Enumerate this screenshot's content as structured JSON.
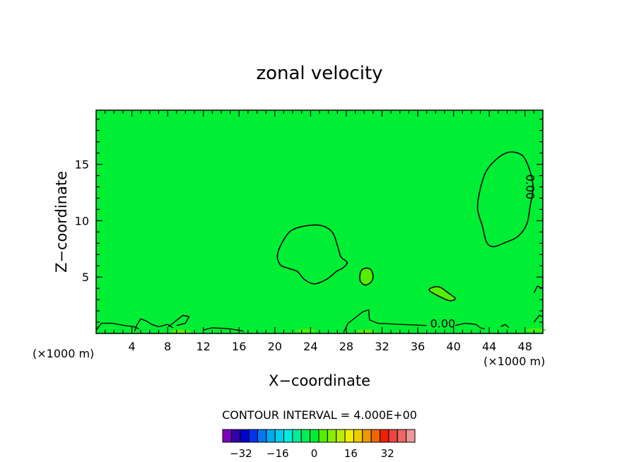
{
  "chart_data": {
    "type": "contour",
    "title": "zonal velocity",
    "xlabel": "X−coordinate",
    "ylabel": "Z−coordinate",
    "x_unit": "(×1000 m)",
    "x_unit_right": "(×1000 m)",
    "xlim": [
      0,
      50
    ],
    "ylim": [
      0,
      19.8
    ],
    "xticks": [
      4,
      8,
      12,
      16,
      20,
      24,
      28,
      32,
      36,
      40,
      44,
      48
    ],
    "xtick_labels": [
      "4",
      "8",
      "12",
      "16",
      "20",
      "24",
      "28",
      "32",
      "36",
      "40",
      "44",
      "48"
    ],
    "yticks": [
      5,
      10,
      15
    ],
    "ytick_labels": [
      "5",
      "10",
      "15"
    ],
    "contour_interval_text": "CONTOUR INTERVAL = 4.000E+00",
    "contour_labels": [
      {
        "text": "0.00",
        "x": 38.8,
        "z": 0.8,
        "rotation": 0
      },
      {
        "text": "0.00",
        "x": 48.5,
        "z": 13.0,
        "rotation": 90
      }
    ],
    "regions": [
      {
        "level": "0 to 4",
        "color": "#00ee33",
        "outline": [
          [
            20.3,
            7.0
          ],
          [
            21,
            8.3
          ],
          [
            22,
            9.2
          ],
          [
            24,
            9.6
          ],
          [
            25.5,
            9.5
          ],
          [
            26.5,
            8.9
          ],
          [
            27,
            7.8
          ],
          [
            27.4,
            6.8
          ],
          [
            28.1,
            6.3
          ],
          [
            27.6,
            5.8
          ],
          [
            26.9,
            5.5
          ],
          [
            25.8,
            4.8
          ],
          [
            24.4,
            4.4
          ],
          [
            23.3,
            4.8
          ],
          [
            22.5,
            5.5
          ],
          [
            21.4,
            5.8
          ],
          [
            20.6,
            6.1
          ]
        ]
      },
      {
        "level": "0 to 4",
        "color": "#00ee33",
        "outline": [
          [
            42.7,
            11.0
          ],
          [
            42.9,
            12.5
          ],
          [
            43.6,
            14.3
          ],
          [
            44.6,
            15.3
          ],
          [
            45.6,
            15.9
          ],
          [
            46.6,
            16.1
          ],
          [
            47.8,
            15.7
          ],
          [
            48.6,
            14.3
          ],
          [
            48.9,
            12.9
          ],
          [
            48.6,
            11.4
          ],
          [
            48.2,
            9.7
          ],
          [
            47.2,
            8.6
          ],
          [
            45.9,
            8.1
          ],
          [
            44.5,
            7.7
          ],
          [
            43.7,
            8.1
          ],
          [
            43.2,
            9.6
          ]
        ]
      },
      {
        "level": "-4 to 0",
        "color": "#55ee00",
        "outline": [
          [
            29.5,
            5.0
          ],
          [
            29.7,
            5.6
          ],
          [
            30.3,
            5.8
          ],
          [
            30.8,
            5.6
          ],
          [
            31,
            5.0
          ],
          [
            30.7,
            4.5
          ],
          [
            30.1,
            4.3
          ],
          [
            29.6,
            4.6
          ]
        ]
      },
      {
        "level": "-4 to 0",
        "color": "#55ee00",
        "outline": [
          [
            37.3,
            3.8
          ],
          [
            37.7,
            4.1
          ],
          [
            38.5,
            4.1
          ],
          [
            39.4,
            3.6
          ],
          [
            40.2,
            3.1
          ],
          [
            39.6,
            2.9
          ],
          [
            38.6,
            3.2
          ]
        ]
      }
    ],
    "colorbar": {
      "colors": [
        "#7f00bf",
        "#3300aa",
        "#0000cc",
        "#0033ee",
        "#0077ee",
        "#00aaee",
        "#00ccee",
        "#00eedd",
        "#00ee99",
        "#00ee55",
        "#00ee33",
        "#55ee00",
        "#88ee00",
        "#bbee00",
        "#eeee00",
        "#eecc00",
        "#ee9900",
        "#ee6600",
        "#ee2200",
        "#ee4444",
        "#ee6666",
        "#ee9999"
      ],
      "tick_values": [
        -32,
        -16,
        0,
        16,
        32
      ],
      "tick_labels": [
        "−32",
        "−16",
        "0",
        "16",
        "32"
      ],
      "range": [
        -40,
        44
      ]
    },
    "background_color": "#00ee33",
    "legend": "colorbar-bottom"
  }
}
